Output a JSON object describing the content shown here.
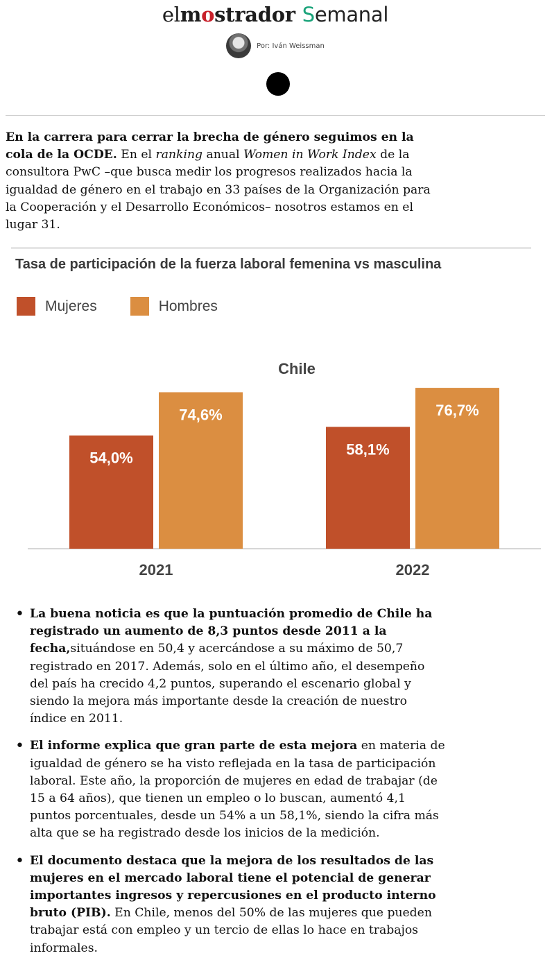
{
  "header": {
    "brand_pre": "el",
    "brand_mid": "m",
    "brand_o": "o",
    "brand_post": "strador",
    "semanal_s": "S",
    "semanal_rest": "emanal",
    "author": "Por: Iván Weissman"
  },
  "intro": {
    "bold": "En la carrera para cerrar la brecha de género seguimos en la cola de la OCDE.",
    "p1": " En el ",
    "i1": "ranking",
    "p2": " anual ",
    "i2": "Women in Work Index",
    "p3": " de la consultora PwC –que busca medir los progresos realizados hacia la igualdad de género en el trabajo en 33 países de la Organización para la Cooperación y el Desarrollo Económicos– nosotros estamos en el lugar 31."
  },
  "chart_data": {
    "type": "bar",
    "title": "Tasa de participación de la fuerza laboral femenina vs masculina",
    "subtitle": "Chile",
    "categories": [
      "2021",
      "2022"
    ],
    "series": [
      {
        "name": "Mujeres",
        "values": [
          54.0,
          58.1
        ],
        "labels": [
          "54,0%",
          "58,1%"
        ],
        "color": "#c0502a"
      },
      {
        "name": "Hombres",
        "values": [
          74.6,
          76.7
        ],
        "labels": [
          "74,6%",
          "76,7%"
        ],
        "color": "#db8e41"
      }
    ],
    "ylim": [
      0,
      85
    ],
    "legend": "top-left",
    "grid": false
  },
  "bullets": [
    {
      "bold": "La buena noticia es que la puntuación promedio de Chile ha registrado un aumento de 8,3 puntos desde 2011 a la fecha,",
      "text": "situándose en 50,4 y acercándose a su máximo de 50,7 registrado en 2017. Además, solo en el último año, el desempeño del país ha crecido 4,2 puntos, superando el escenario global y siendo la mejora más importante desde la creación de nuestro índice en 2011."
    },
    {
      "bold": "El informe explica que gran parte de esta mejora",
      "text": " en materia de igualdad de género se ha visto reflejada en la tasa de participación laboral. Este año, la proporción de mujeres en edad de trabajar (de 15 a 64 años), que tienen un empleo o lo buscan, aumentó 4,1 puntos porcentuales, desde un 54% a un 58,1%, siendo la cifra más alta que se ha registrado desde los inicios de la medición."
    },
    {
      "bold": "El documento destaca que la mejora de los resultados de las mujeres en el mercado laboral tiene el potencial de generar importantes ingresos y repercusiones en el producto interno bruto (PIB).",
      "text": " En Chile, menos del 50% de las mujeres que pueden trabajar está con empleo y un tercio de ellas lo hace en trabajos informales."
    }
  ]
}
